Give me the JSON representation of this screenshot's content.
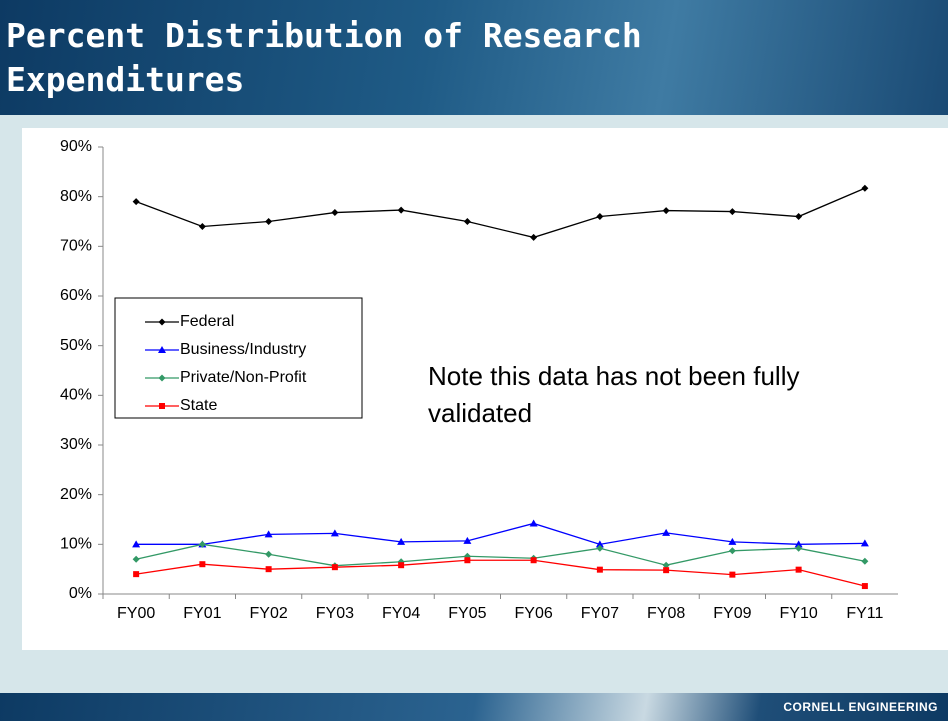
{
  "header": {
    "title": "Percent Distribution of Research Expenditures"
  },
  "footer": {
    "text": "CORNELL ENGINEERING"
  },
  "chart_data": {
    "type": "line",
    "annotation": "Note this data has not been fully validated",
    "categories": [
      "FY00",
      "FY01",
      "FY02",
      "FY03",
      "FY04",
      "FY05",
      "FY06",
      "FY07",
      "FY08",
      "FY09",
      "FY10",
      "FY11"
    ],
    "series": [
      {
        "name": "Federal",
        "color": "#000000",
        "marker": "diamond",
        "values": [
          79,
          74,
          75,
          76.8,
          77.3,
          75,
          71.8,
          76,
          77.2,
          77,
          76,
          81.7
        ]
      },
      {
        "name": "Business/Industry",
        "color": "#0000ff",
        "marker": "triangle",
        "values": [
          10,
          10,
          12,
          12.2,
          10.5,
          10.7,
          14.2,
          10,
          12.3,
          10.5,
          10,
          10.2
        ]
      },
      {
        "name": "Private/Non-Profit",
        "color": "#339966",
        "marker": "diamond",
        "values": [
          7,
          10,
          8,
          5.7,
          6.5,
          7.6,
          7.2,
          9.2,
          5.8,
          8.7,
          9.2,
          6.6
        ]
      },
      {
        "name": "State",
        "color": "#ff0000",
        "marker": "square",
        "values": [
          4,
          6,
          5,
          5.4,
          5.8,
          6.8,
          6.8,
          4.9,
          4.8,
          3.9,
          4.9,
          1.6
        ]
      }
    ],
    "ylim": [
      0,
      90
    ],
    "yticks": [
      {
        "value": 0,
        "label": "0%"
      },
      {
        "value": 10,
        "label": "10%"
      },
      {
        "value": 20,
        "label": "20%"
      },
      {
        "value": 30,
        "label": "30%"
      },
      {
        "value": 40,
        "label": "40%"
      },
      {
        "value": 50,
        "label": "50%"
      },
      {
        "value": 60,
        "label": "60%"
      },
      {
        "value": 70,
        "label": "70%"
      },
      {
        "value": 80,
        "label": "80%"
      },
      {
        "value": 90,
        "label": "90%"
      }
    ],
    "grid": false,
    "legend": "left"
  }
}
